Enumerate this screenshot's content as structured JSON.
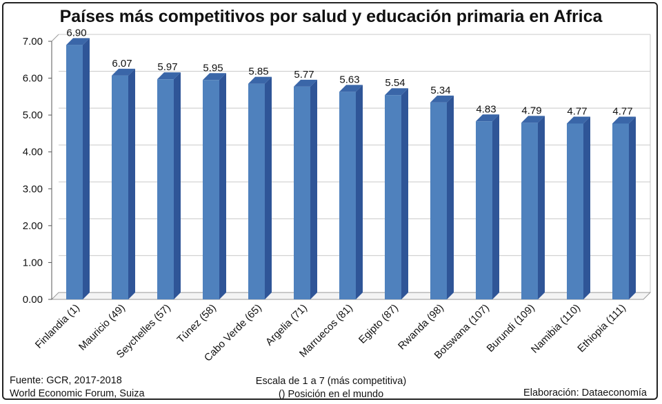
{
  "chart_data": {
    "type": "bar",
    "title": "Países más competitivos por salud y educación primaria en Africa",
    "categories": [
      "Finlandia (1)",
      "Mauricio (49)",
      "Seychelles (57)",
      "Túnez (58)",
      "Cabo Verde (65)",
      "Argelia (71)",
      "Marruecos (81)",
      "Egipto (87)",
      "Rwanda (98)",
      "Botswana (107)",
      "Burundi (109)",
      "Namibia (110)",
      "Ethiopia (111)"
    ],
    "values": [
      6.9,
      6.07,
      5.97,
      5.95,
      5.85,
      5.77,
      5.63,
      5.54,
      5.34,
      4.83,
      4.79,
      4.77,
      4.77
    ],
    "value_labels": [
      "6.90",
      "6.07",
      "5.97",
      "5.95",
      "5.85",
      "5.77",
      "5.63",
      "5.54",
      "5.34",
      "4.83",
      "4.79",
      "4.77",
      "4.77"
    ],
    "ylim": [
      0,
      7
    ],
    "yticks": [
      "0.00",
      "1.00",
      "2.00",
      "3.00",
      "4.00",
      "5.00",
      "6.00",
      "7.00"
    ],
    "grid": true,
    "bar_color": "#4f81bd",
    "bar_side_color": "#2f5597",
    "bar_top_color": "#3a66a8"
  },
  "footer": {
    "source_line1": "Fuente:  GCR, 2017-2018",
    "source_line2": "World Economic Forum, Suiza",
    "scale_line1": "Escala de 1 a 7 (más competitiva)",
    "scale_line2": "() Posición en el mundo",
    "credit": "Elaboración: Dataeconomía"
  }
}
